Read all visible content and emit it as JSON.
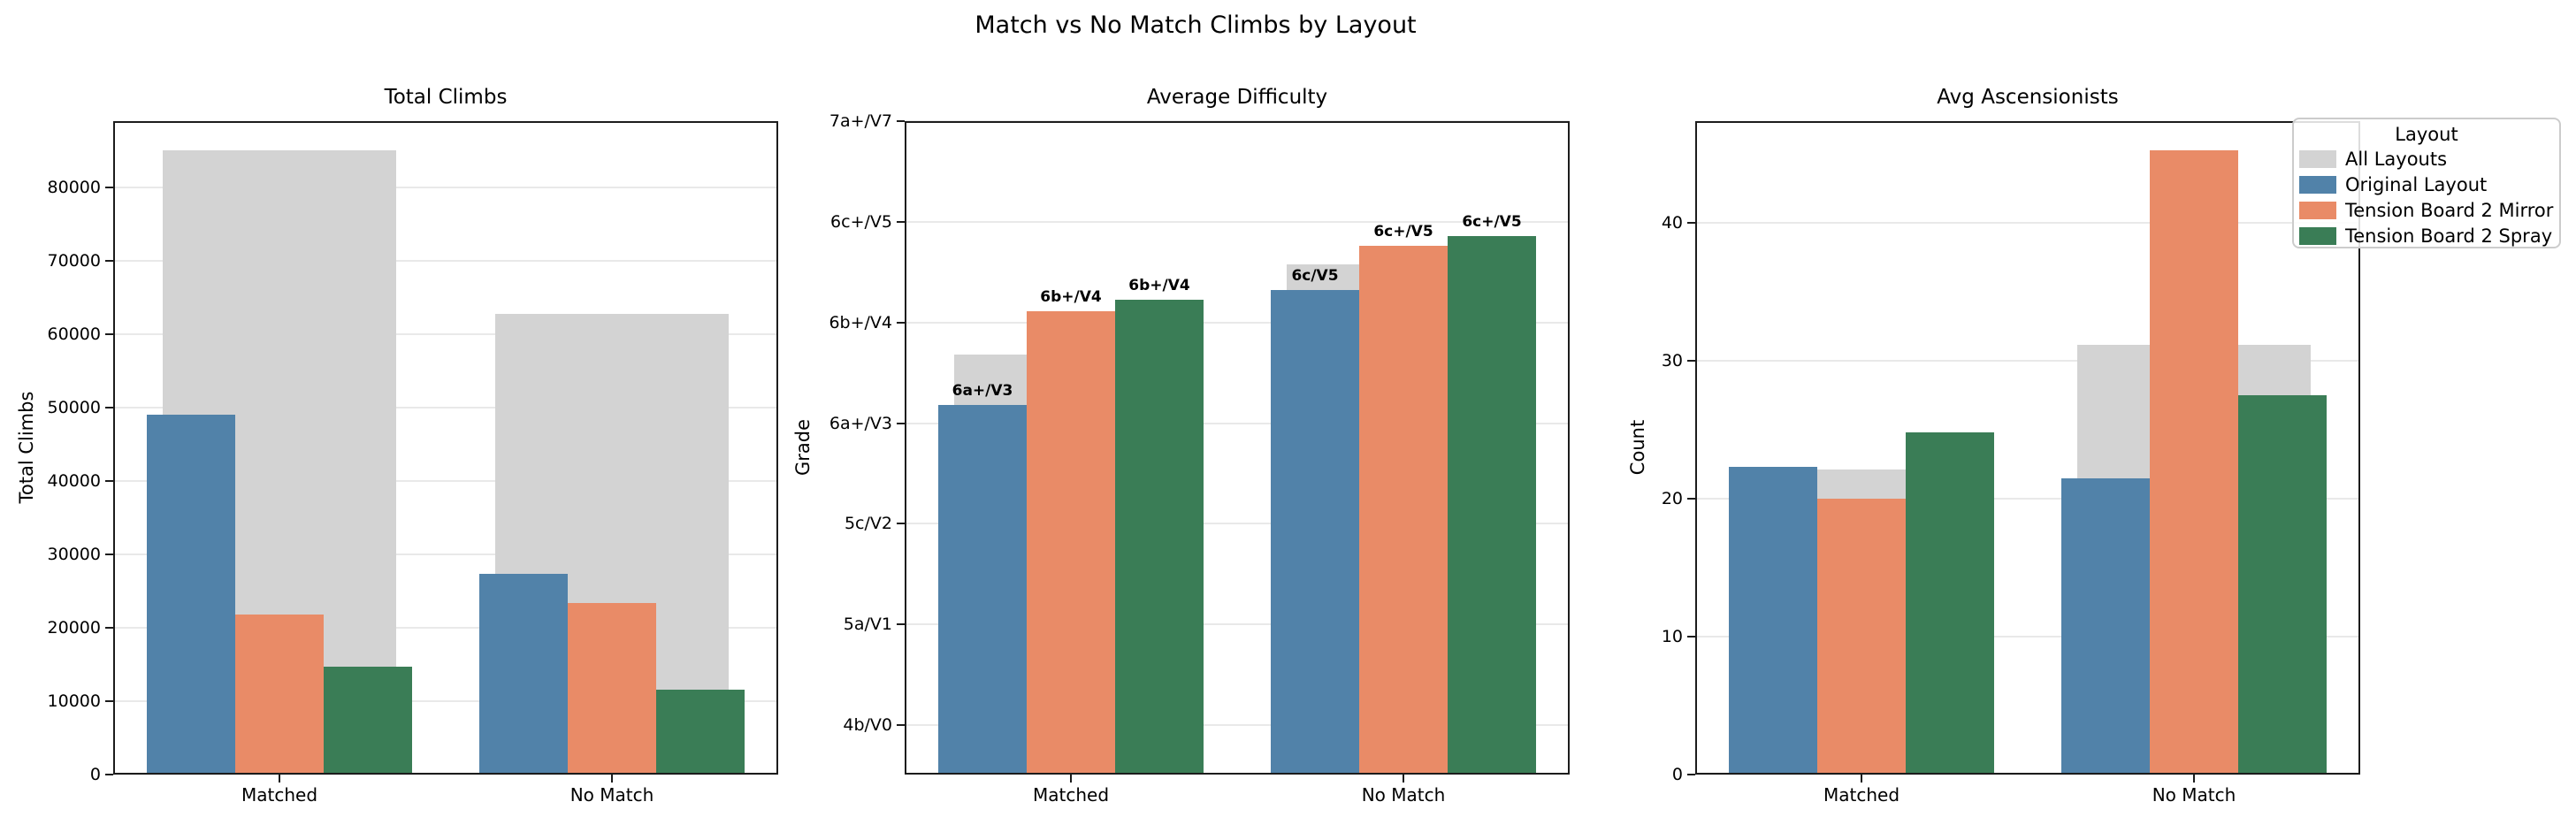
{
  "suptitle": "Match vs No Match Climbs by Layout",
  "legend": {
    "title": "Layout",
    "position": "top-right",
    "entries": [
      {
        "label": "All Layouts",
        "color": "#d3d3d3"
      },
      {
        "label": "Original Layout",
        "color": "#5182a9"
      },
      {
        "label": "Tension Board 2 Mirror",
        "color": "#e98b67"
      },
      {
        "label": "Tension Board 2 Spray",
        "color": "#3a7d56"
      }
    ]
  },
  "colors": {
    "all_layouts": "#d3d3d3",
    "original_layout": "#5182a9",
    "tension_board_2_mirror": "#e98b67",
    "tension_board_2_spray": "#3a7d56",
    "grid": "#e9e9e9",
    "spine": "#1c1c1c"
  },
  "chart_data": [
    {
      "type": "bar",
      "title": "Total Climbs",
      "ylabel": "Total Climbs",
      "xlabel": "",
      "categories": [
        "Matched",
        "No Match"
      ],
      "ylim": [
        0,
        89000
      ],
      "grid": true,
      "yticks": [
        {
          "value": 0,
          "label": "0"
        },
        {
          "value": 10000,
          "label": "10000"
        },
        {
          "value": 20000,
          "label": "20000"
        },
        {
          "value": 30000,
          "label": "30000"
        },
        {
          "value": 40000,
          "label": "40000"
        },
        {
          "value": 50000,
          "label": "50000"
        },
        {
          "value": 60000,
          "label": "60000"
        },
        {
          "value": 70000,
          "label": "70000"
        },
        {
          "value": 80000,
          "label": "80000"
        }
      ],
      "series": [
        {
          "name": "All Layouts",
          "color": "#d3d3d3",
          "wide": true,
          "values": [
            85000,
            62800
          ]
        },
        {
          "name": "Original Layout",
          "color": "#5182a9",
          "slot": 0,
          "values": [
            49000,
            27300
          ]
        },
        {
          "name": "Tension Board 2 Mirror",
          "color": "#e98b67",
          "slot": 1,
          "values": [
            21800,
            23400
          ]
        },
        {
          "name": "Tension Board 2 Spray",
          "color": "#3a7d56",
          "slot": 2,
          "values": [
            14700,
            11600
          ]
        }
      ]
    },
    {
      "type": "bar",
      "title": "Average Difficulty",
      "ylabel": "Grade",
      "xlabel": "",
      "categories": [
        "Matched",
        "No Match"
      ],
      "ylim": [
        -0.49,
        6
      ],
      "grid": true,
      "yticks": [
        {
          "value": 0,
          "label": "4b/V0"
        },
        {
          "value": 1,
          "label": "5a/V1"
        },
        {
          "value": 2,
          "label": "5c/V2"
        },
        {
          "value": 3,
          "label": "6a+/V3"
        },
        {
          "value": 4,
          "label": "6b+/V4"
        },
        {
          "value": 5,
          "label": "6c+/V5"
        },
        {
          "value": 6,
          "label": "7a+/V7"
        }
      ],
      "series": [
        {
          "name": "All Layouts",
          "color": "#d3d3d3",
          "wide": true,
          "values": [
            3.68,
            4.58
          ]
        },
        {
          "name": "Original Layout",
          "color": "#5182a9",
          "slot": 0,
          "values": [
            3.18,
            4.32
          ],
          "bar_labels": [
            "6a+/V3",
            "6c/V5"
          ]
        },
        {
          "name": "Tension Board 2 Mirror",
          "color": "#e98b67",
          "slot": 1,
          "values": [
            4.11,
            4.76
          ],
          "bar_labels": [
            "6b+/V4",
            "6c+/V5"
          ]
        },
        {
          "name": "Tension Board 2 Spray",
          "color": "#3a7d56",
          "slot": 2,
          "values": [
            4.23,
            4.86
          ],
          "bar_labels": [
            "6b+/V4",
            "6c+/V5"
          ]
        }
      ]
    },
    {
      "type": "bar",
      "title": "Avg Ascensionists",
      "ylabel": "Count",
      "xlabel": "",
      "categories": [
        "Matched",
        "No Match"
      ],
      "ylim": [
        0,
        47.4
      ],
      "grid": true,
      "yticks": [
        {
          "value": 0,
          "label": "0"
        },
        {
          "value": 10,
          "label": "10"
        },
        {
          "value": 20,
          "label": "20"
        },
        {
          "value": 30,
          "label": "30"
        },
        {
          "value": 40,
          "label": "40"
        }
      ],
      "series": [
        {
          "name": "All Layouts",
          "color": "#d3d3d3",
          "wide": true,
          "values": [
            22.1,
            31.2
          ]
        },
        {
          "name": "Original Layout",
          "color": "#5182a9",
          "slot": 0,
          "values": [
            22.3,
            21.5
          ]
        },
        {
          "name": "Tension Board 2 Mirror",
          "color": "#e98b67",
          "slot": 1,
          "values": [
            20.0,
            45.3
          ]
        },
        {
          "name": "Tension Board 2 Spray",
          "color": "#3a7d56",
          "slot": 2,
          "values": [
            24.8,
            27.5
          ]
        }
      ]
    }
  ]
}
